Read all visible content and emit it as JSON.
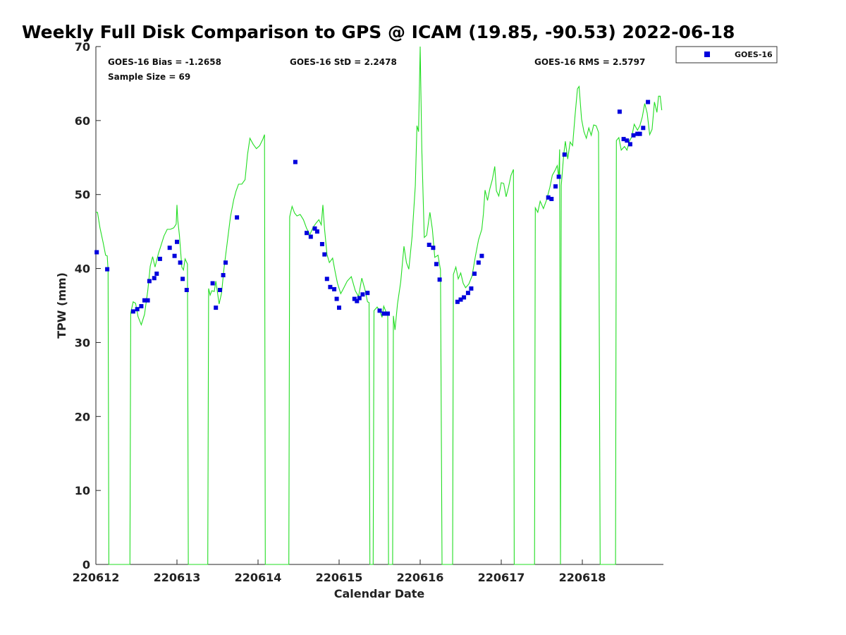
{
  "chart_data": {
    "type": "scatter",
    "title": "Weekly Full Disk Comparison to GPS @ ICAM (19.85, -90.53) 2022-06-18",
    "xlabel": "Calendar Date",
    "ylabel": "TPW (mm)",
    "xlim": [
      0,
      7.0
    ],
    "ylim": [
      0,
      70
    ],
    "x_ticks": [
      {
        "value": 0,
        "label": "220612"
      },
      {
        "value": 1,
        "label": "220613"
      },
      {
        "value": 2,
        "label": "220614"
      },
      {
        "value": 3,
        "label": "220615"
      },
      {
        "value": 4,
        "label": "220616"
      },
      {
        "value": 5,
        "label": "220617"
      },
      {
        "value": 6,
        "label": "220618"
      }
    ],
    "y_ticks": [
      0,
      10,
      20,
      30,
      40,
      50,
      60,
      70
    ],
    "grid": false,
    "legend": {
      "position": "top-right",
      "entries": [
        "GOES-16"
      ]
    },
    "stats": {
      "bias": "GOES-16 Bias = -1.2658",
      "sample_size": "Sample Size = 69",
      "std": "GOES-16 StD = 2.2478",
      "rms": "GOES-16 RMS = 2.5797"
    },
    "series": [
      {
        "name": "GOES-16",
        "kind": "scatter",
        "color": "#0000dd",
        "marker": "square",
        "points": [
          [
            0.01,
            42.2
          ],
          [
            0.14,
            39.9
          ],
          [
            0.46,
            34.2
          ],
          [
            0.51,
            34.5
          ],
          [
            0.56,
            34.9
          ],
          [
            0.6,
            35.7
          ],
          [
            0.64,
            35.7
          ],
          [
            0.66,
            38.3
          ],
          [
            0.72,
            38.7
          ],
          [
            0.75,
            39.3
          ],
          [
            0.79,
            41.3
          ],
          [
            0.91,
            42.8
          ],
          [
            0.97,
            41.7
          ],
          [
            1.0,
            43.6
          ],
          [
            1.04,
            40.8
          ],
          [
            1.07,
            38.6
          ],
          [
            1.12,
            37.1
          ],
          [
            1.44,
            38.0
          ],
          [
            1.48,
            34.7
          ],
          [
            1.53,
            37.1
          ],
          [
            1.57,
            39.1
          ],
          [
            1.6,
            40.8
          ],
          [
            1.74,
            46.9
          ],
          [
            2.46,
            54.4
          ],
          [
            2.6,
            44.8
          ],
          [
            2.65,
            44.3
          ],
          [
            2.7,
            45.4
          ],
          [
            2.73,
            45.0
          ],
          [
            2.79,
            43.3
          ],
          [
            2.82,
            41.9
          ],
          [
            2.85,
            38.6
          ],
          [
            2.89,
            37.5
          ],
          [
            2.94,
            37.2
          ],
          [
            2.97,
            35.9
          ],
          [
            3.0,
            34.7
          ],
          [
            3.19,
            35.9
          ],
          [
            3.22,
            35.6
          ],
          [
            3.25,
            36.0
          ],
          [
            3.29,
            36.5
          ],
          [
            3.35,
            36.7
          ],
          [
            3.5,
            34.3
          ],
          [
            3.55,
            33.9
          ],
          [
            3.6,
            33.9
          ],
          [
            4.11,
            43.2
          ],
          [
            4.16,
            42.8
          ],
          [
            4.2,
            40.6
          ],
          [
            4.24,
            38.5
          ],
          [
            4.46,
            35.5
          ],
          [
            4.5,
            35.8
          ],
          [
            4.54,
            36.1
          ],
          [
            4.59,
            36.7
          ],
          [
            4.63,
            37.3
          ],
          [
            4.67,
            39.3
          ],
          [
            4.72,
            40.8
          ],
          [
            4.76,
            41.7
          ],
          [
            5.58,
            49.6
          ],
          [
            5.62,
            49.4
          ],
          [
            5.67,
            51.1
          ],
          [
            5.71,
            52.4
          ],
          [
            5.78,
            55.4
          ],
          [
            6.46,
            61.2
          ],
          [
            6.51,
            57.5
          ],
          [
            6.55,
            57.3
          ],
          [
            6.59,
            56.8
          ],
          [
            6.63,
            58.0
          ],
          [
            6.68,
            58.2
          ],
          [
            6.71,
            58.2
          ],
          [
            6.75,
            59.0
          ],
          [
            6.81,
            62.5
          ]
        ]
      },
      {
        "name": "",
        "kind": "line",
        "color": "#22dd22",
        "points": [
          [
            0.0,
            47.6
          ],
          [
            0.02,
            47.6
          ],
          [
            0.05,
            45.5
          ],
          [
            0.09,
            43.5
          ],
          [
            0.12,
            41.8
          ],
          [
            0.14,
            41.7
          ],
          [
            0.15,
            39.8
          ],
          [
            0.16,
            0
          ],
          [
            0.42,
            0
          ],
          [
            0.43,
            34.0
          ],
          [
            0.46,
            35.5
          ],
          [
            0.49,
            35.3
          ],
          [
            0.52,
            33.5
          ],
          [
            0.56,
            32.4
          ],
          [
            0.6,
            33.8
          ],
          [
            0.64,
            37.0
          ],
          [
            0.67,
            40.3
          ],
          [
            0.7,
            41.6
          ],
          [
            0.73,
            40.2
          ],
          [
            0.77,
            42.0
          ],
          [
            0.8,
            43.0
          ],
          [
            0.84,
            44.4
          ],
          [
            0.88,
            45.3
          ],
          [
            0.92,
            45.3
          ],
          [
            0.96,
            45.5
          ],
          [
            0.99,
            46.0
          ],
          [
            1.0,
            48.6
          ],
          [
            1.01,
            46.5
          ],
          [
            1.03,
            44.5
          ],
          [
            1.06,
            40.2
          ],
          [
            1.08,
            39.8
          ],
          [
            1.1,
            41.3
          ],
          [
            1.13,
            40.6
          ],
          [
            1.14,
            0
          ],
          [
            1.38,
            0
          ],
          [
            1.39,
            37.3
          ],
          [
            1.41,
            36.4
          ],
          [
            1.43,
            37.0
          ],
          [
            1.46,
            36.9
          ],
          [
            1.48,
            38.3
          ],
          [
            1.52,
            35.2
          ],
          [
            1.55,
            36.7
          ],
          [
            1.58,
            40.0
          ],
          [
            1.62,
            43.5
          ],
          [
            1.66,
            47.0
          ],
          [
            1.7,
            49.3
          ],
          [
            1.73,
            50.5
          ],
          [
            1.76,
            51.4
          ],
          [
            1.8,
            51.4
          ],
          [
            1.84,
            52.0
          ],
          [
            1.87,
            55.4
          ],
          [
            1.9,
            57.6
          ],
          [
            1.94,
            56.8
          ],
          [
            1.98,
            56.2
          ],
          [
            2.02,
            56.6
          ],
          [
            2.06,
            57.5
          ],
          [
            2.08,
            58.1
          ],
          [
            2.09,
            0
          ],
          [
            2.38,
            0
          ],
          [
            2.39,
            47.0
          ],
          [
            2.42,
            48.4
          ],
          [
            2.45,
            47.5
          ],
          [
            2.48,
            47.1
          ],
          [
            2.52,
            47.3
          ],
          [
            2.56,
            46.6
          ],
          [
            2.6,
            45.4
          ],
          [
            2.64,
            44.6
          ],
          [
            2.68,
            45.6
          ],
          [
            2.72,
            46.2
          ],
          [
            2.75,
            46.6
          ],
          [
            2.78,
            45.9
          ],
          [
            2.8,
            48.6
          ],
          [
            2.82,
            45.4
          ],
          [
            2.85,
            41.9
          ],
          [
            2.88,
            40.8
          ],
          [
            2.92,
            41.4
          ],
          [
            2.95,
            39.6
          ],
          [
            2.98,
            38.0
          ],
          [
            3.02,
            36.6
          ],
          [
            3.05,
            37.2
          ],
          [
            3.1,
            38.3
          ],
          [
            3.15,
            38.9
          ],
          [
            3.2,
            37.0
          ],
          [
            3.24,
            36.2
          ],
          [
            3.28,
            38.7
          ],
          [
            3.32,
            37.1
          ],
          [
            3.35,
            35.5
          ],
          [
            3.37,
            35.4
          ],
          [
            3.38,
            0
          ],
          [
            3.42,
            0
          ],
          [
            3.43,
            34.3
          ],
          [
            3.47,
            34.8
          ],
          [
            3.5,
            34.3
          ],
          [
            3.53,
            33.4
          ],
          [
            3.55,
            34.9
          ],
          [
            3.58,
            34.1
          ],
          [
            3.6,
            34.0
          ],
          [
            3.61,
            0
          ],
          [
            3.66,
            0
          ],
          [
            3.67,
            33.6
          ],
          [
            3.69,
            31.7
          ],
          [
            3.72,
            35.2
          ],
          [
            3.76,
            38.2
          ],
          [
            3.8,
            43.0
          ],
          [
            3.83,
            40.8
          ],
          [
            3.86,
            39.9
          ],
          [
            3.9,
            44.3
          ],
          [
            3.94,
            51.2
          ],
          [
            3.96,
            59.3
          ],
          [
            3.98,
            58.5
          ],
          [
            4.0,
            70.0
          ],
          [
            4.02,
            56.2
          ],
          [
            4.05,
            44.2
          ],
          [
            4.08,
            44.5
          ],
          [
            4.12,
            47.6
          ],
          [
            4.15,
            45.3
          ],
          [
            4.18,
            41.5
          ],
          [
            4.22,
            41.8
          ],
          [
            4.25,
            39.8
          ],
          [
            4.27,
            0
          ],
          [
            4.4,
            0
          ],
          [
            4.41,
            39.2
          ],
          [
            4.44,
            40.2
          ],
          [
            4.47,
            38.6
          ],
          [
            4.5,
            39.4
          ],
          [
            4.53,
            38.0
          ],
          [
            4.56,
            37.4
          ],
          [
            4.6,
            37.9
          ],
          [
            4.64,
            39.0
          ],
          [
            4.68,
            41.6
          ],
          [
            4.72,
            43.9
          ],
          [
            4.76,
            45.3
          ],
          [
            4.78,
            47.4
          ],
          [
            4.8,
            50.6
          ],
          [
            4.83,
            49.2
          ],
          [
            4.86,
            50.8
          ],
          [
            4.89,
            52.0
          ],
          [
            4.92,
            53.8
          ],
          [
            4.94,
            50.5
          ],
          [
            4.97,
            49.8
          ],
          [
            5.0,
            51.6
          ],
          [
            5.03,
            51.5
          ],
          [
            5.06,
            49.7
          ],
          [
            5.09,
            51.0
          ],
          [
            5.12,
            52.6
          ],
          [
            5.15,
            53.4
          ],
          [
            5.16,
            0
          ],
          [
            5.41,
            0
          ],
          [
            5.42,
            48.2
          ],
          [
            5.45,
            47.6
          ],
          [
            5.48,
            49.1
          ],
          [
            5.52,
            48.1
          ],
          [
            5.56,
            49.3
          ],
          [
            5.6,
            51.0
          ],
          [
            5.63,
            52.6
          ],
          [
            5.66,
            53.2
          ],
          [
            5.69,
            53.9
          ],
          [
            5.71,
            52.3
          ],
          [
            5.72,
            56.1
          ],
          [
            5.73,
            0
          ],
          [
            5.74,
            51.2
          ],
          [
            5.77,
            55.3
          ],
          [
            5.79,
            57.2
          ],
          [
            5.82,
            54.8
          ],
          [
            5.85,
            57.1
          ],
          [
            5.88,
            56.6
          ],
          [
            5.91,
            60.6
          ],
          [
            5.94,
            64.3
          ],
          [
            5.96,
            64.6
          ],
          [
            5.99,
            60.2
          ],
          [
            6.02,
            58.5
          ],
          [
            6.05,
            57.6
          ],
          [
            6.08,
            59.0
          ],
          [
            6.11,
            58.0
          ],
          [
            6.14,
            59.4
          ],
          [
            6.17,
            59.3
          ],
          [
            6.2,
            58.4
          ],
          [
            6.22,
            0
          ],
          [
            6.41,
            0
          ],
          [
            6.42,
            57.3
          ],
          [
            6.45,
            57.7
          ],
          [
            6.48,
            56.0
          ],
          [
            6.52,
            56.5
          ],
          [
            6.55,
            56.0
          ],
          [
            6.58,
            57.2
          ],
          [
            6.61,
            57.8
          ],
          [
            6.64,
            59.5
          ],
          [
            6.68,
            58.7
          ],
          [
            6.71,
            59.3
          ],
          [
            6.74,
            60.5
          ],
          [
            6.77,
            62.3
          ],
          [
            6.8,
            61.0
          ],
          [
            6.83,
            58.1
          ],
          [
            6.86,
            58.8
          ],
          [
            6.89,
            62.5
          ],
          [
            6.92,
            61.1
          ],
          [
            6.94,
            63.3
          ],
          [
            6.96,
            63.3
          ],
          [
            6.98,
            61.4
          ]
        ]
      }
    ]
  }
}
